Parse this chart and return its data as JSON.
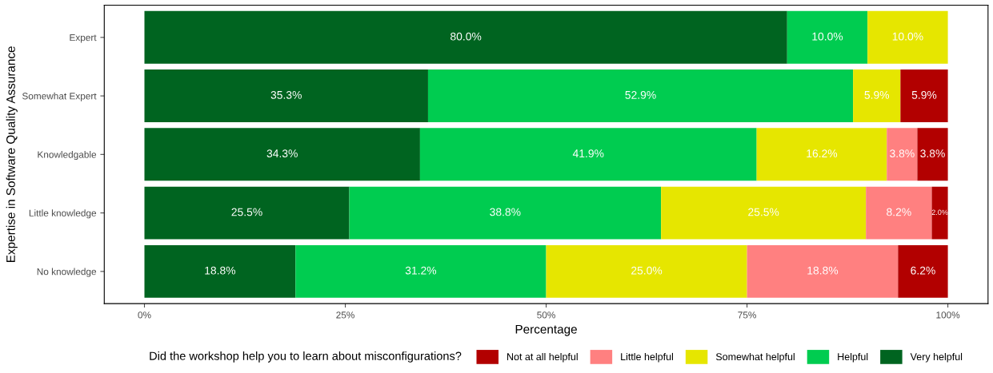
{
  "chart_data": {
    "type": "bar",
    "orientation": "horizontal",
    "stacked": true,
    "categories": [
      "Expert",
      "Somewhat Expert",
      "Knowledgable",
      "Little knowledge",
      "No knowledge"
    ],
    "xlabel": "Percentage",
    "ylabel": "Expertise in Software Quality Assurance",
    "legend_title": "Did the workshop help you to learn about misconfigurations?",
    "legend": "bottom",
    "grid": false,
    "xlim": [
      -5,
      105
    ],
    "xticks": [
      {
        "value": 0,
        "label": "0%"
      },
      {
        "value": 25,
        "label": "25%"
      },
      {
        "value": 50,
        "label": "50%"
      },
      {
        "value": 75,
        "label": "75%"
      },
      {
        "value": 100,
        "label": "100%"
      }
    ],
    "series": [
      {
        "name": "Very helpful",
        "color": "#006420",
        "values": [
          80.0,
          35.3,
          34.3,
          25.5,
          18.8
        ],
        "value_labels": [
          "80.0%",
          "35.3%",
          "34.3%",
          "25.5%",
          "18.8%"
        ]
      },
      {
        "name": "Helpful",
        "color": "#00cc50",
        "values": [
          10.0,
          52.9,
          41.9,
          38.8,
          31.2
        ],
        "value_labels": [
          "10.0%",
          "52.9%",
          "41.9%",
          "38.8%",
          "31.2%"
        ]
      },
      {
        "name": "Somewhat helpful",
        "color": "#e6e600",
        "values": [
          10.0,
          5.9,
          16.2,
          25.5,
          25.0
        ],
        "value_labels": [
          "10.0%",
          "5.9%",
          "16.2%",
          "25.5%",
          "25.0%"
        ]
      },
      {
        "name": "Little helpful",
        "color": "#ff8080",
        "values": [
          0,
          0,
          3.8,
          8.2,
          18.8
        ],
        "value_labels": [
          null,
          null,
          "3.8%",
          "8.2%",
          "18.8%"
        ]
      },
      {
        "name": "Not at all helpful",
        "color": "#b20000",
        "values": [
          0,
          5.9,
          3.8,
          2.0,
          6.2
        ],
        "value_labels": [
          null,
          "5.9%",
          "3.8%",
          "2.0%",
          "6.2%"
        ]
      }
    ]
  }
}
